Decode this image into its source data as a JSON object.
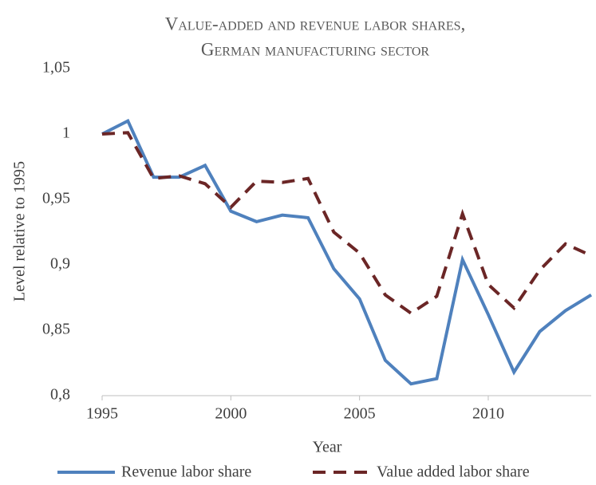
{
  "chart_data": {
    "type": "line",
    "title": [
      "Value-added and revenue labor shares,",
      "German manufacturing sector"
    ],
    "x_label": "Year",
    "y_label": "Level relative to 1995",
    "x": [
      1995,
      1996,
      1997,
      1998,
      1999,
      2000,
      2001,
      2002,
      2003,
      2004,
      2005,
      2006,
      2007,
      2008,
      2009,
      2010,
      2011,
      2012,
      2013,
      2014
    ],
    "series": [
      {
        "name": "Revenue labor share",
        "color": "#4f81bd",
        "dash": "solid",
        "values": [
          1.0,
          1.01,
          0.967,
          0.967,
          0.976,
          0.941,
          0.933,
          0.938,
          0.936,
          0.897,
          0.874,
          0.827,
          0.809,
          0.813,
          0.904,
          0.862,
          0.818,
          0.849,
          0.865,
          0.877
        ]
      },
      {
        "name": "Value added labor share",
        "color": "#6b2626",
        "dash": "dashed",
        "values": [
          1.0,
          1.001,
          0.966,
          0.968,
          0.962,
          0.944,
          0.964,
          0.963,
          0.966,
          0.925,
          0.909,
          0.877,
          0.863,
          0.876,
          0.939,
          0.885,
          0.867,
          0.896,
          0.916,
          0.907
        ]
      }
    ],
    "xlim": [
      1995,
      2014
    ],
    "xticks": [
      1995,
      2000,
      2005,
      2010
    ],
    "ylim": [
      0.8,
      1.05
    ],
    "yticks": [
      {
        "value": 0.8,
        "label": "0,8"
      },
      {
        "value": 0.85,
        "label": "0,85"
      },
      {
        "value": 0.9,
        "label": "0,9"
      },
      {
        "value": 0.95,
        "label": "0,95"
      },
      1,
      {
        "value": 1.05,
        "label": "1,05"
      }
    ],
    "grid": false,
    "legend": "bottom"
  }
}
